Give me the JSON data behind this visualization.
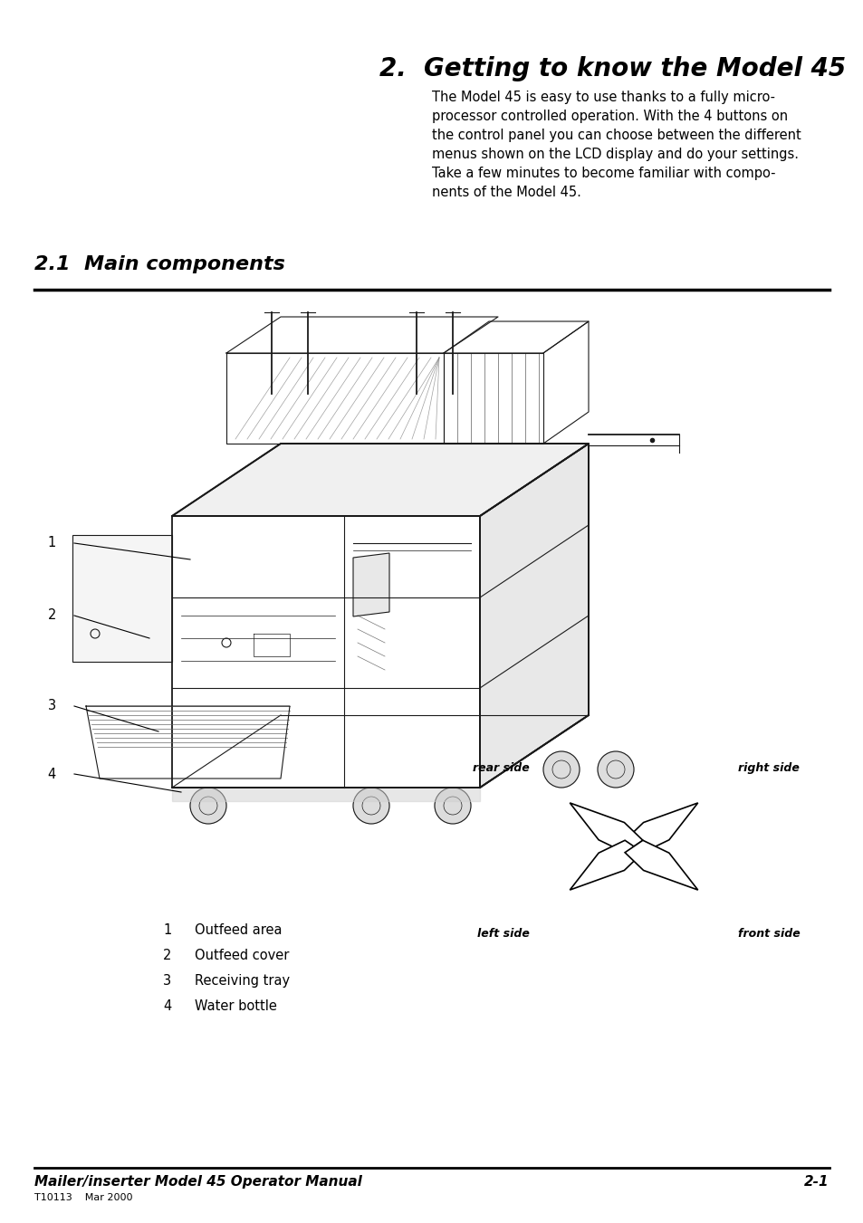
{
  "title": "2.  Getting to know the Model 45",
  "section": "2.1  Main components",
  "body_text": "The Model 45 is easy to use thanks to a fully micro-\nprocessor controlled operation. With the 4 buttons on\nthe control panel you can choose between the different\nmenus shown on the LCD display and do your settings.\nTake a few minutes to become familiar with compo-\nnents of the Model 45.",
  "labels": [
    {
      "num": "1",
      "text": "Outfeed area"
    },
    {
      "num": "2",
      "text": "Outfeed cover"
    },
    {
      "num": "3",
      "text": "Receiving tray"
    },
    {
      "num": "4",
      "text": "Water bottle"
    }
  ],
  "orientation_labels": {
    "rear_side": "rear side",
    "right_side": "right side",
    "left_side": "left side",
    "front_side": "front side"
  },
  "footer_left": "Mailer/inserter Model 45 Operator Manual",
  "footer_right": "2-1",
  "footer_sub": "T10113    Mar 2000",
  "bg_color": "#ffffff",
  "text_color": "#000000",
  "title_fontsize": 20,
  "section_fontsize": 16,
  "body_fontsize": 10.5,
  "label_fontsize": 10.5,
  "footer_fontsize": 11
}
